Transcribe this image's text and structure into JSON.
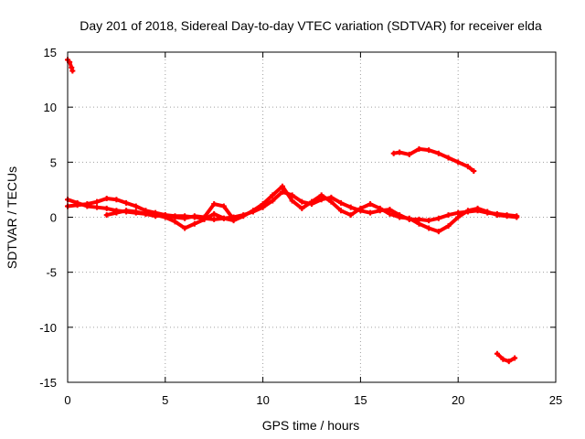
{
  "chart_data": {
    "type": "scatter",
    "title": "Day 201 of 2018, Sidereal Day-to-day VTEC variation (SDTVAR) for receiver elda",
    "xlabel": "GPS time / hours",
    "ylabel": "SDTVAR / TECUs",
    "xlim": [
      0,
      25
    ],
    "ylim": [
      -15,
      15
    ],
    "xticks": [
      "0",
      "5",
      "10",
      "15",
      "20",
      "25"
    ],
    "yticks": [
      "15",
      "10",
      "5",
      "0",
      "-5",
      "-10",
      "-15"
    ],
    "grid": true,
    "marker_color": "#ff0000",
    "series": [
      {
        "name": "segment-early-high",
        "x": [
          0.0,
          0.1,
          0.2,
          0.25
        ],
        "y": [
          14.3,
          14.1,
          13.6,
          13.3
        ]
      },
      {
        "name": "arc-main-a",
        "x": [
          0.0,
          0.5,
          1.0,
          1.5,
          2.0,
          2.5,
          3.0,
          3.5,
          4.0,
          4.5,
          5.0,
          5.5,
          6.0,
          6.5,
          7.0,
          7.5,
          8.0,
          8.5,
          9.0,
          9.5,
          10.0,
          10.5,
          11.0,
          11.5,
          12.0,
          12.5,
          13.0,
          13.5,
          14.0,
          14.5,
          15.0,
          15.5,
          16.0,
          16.5,
          17.0,
          17.5,
          18.0,
          18.5,
          19.0,
          19.5,
          20.0,
          20.5,
          21.0,
          21.5,
          22.0,
          22.5,
          23.0
        ],
        "y": [
          1.0,
          1.1,
          1.2,
          1.4,
          1.7,
          1.6,
          1.3,
          1.0,
          0.6,
          0.4,
          0.2,
          0.1,
          0.1,
          0.0,
          -0.1,
          -0.2,
          -0.1,
          0.0,
          0.2,
          0.5,
          0.9,
          1.5,
          2.3,
          2.0,
          1.4,
          1.2,
          1.6,
          1.8,
          1.3,
          0.9,
          0.6,
          0.4,
          0.6,
          0.7,
          0.2,
          -0.2,
          -0.2,
          -0.3,
          -0.1,
          0.2,
          0.4,
          0.5,
          0.6,
          0.4,
          0.3,
          0.2,
          0.1
        ]
      },
      {
        "name": "arc-main-b",
        "x": [
          0.0,
          0.5,
          1.0,
          1.5,
          2.0,
          2.5,
          3.0,
          3.5,
          4.0,
          4.5,
          5.0,
          5.5,
          6.0,
          6.5,
          7.0,
          7.5,
          8.0,
          8.5,
          9.0,
          9.5,
          10.0,
          10.5,
          11.0,
          11.5,
          12.0,
          12.5,
          13.0,
          13.5,
          14.0,
          14.5,
          15.0,
          15.5,
          16.0,
          16.5,
          17.0,
          17.5,
          18.0,
          18.5,
          19.0,
          19.5,
          20.0,
          20.5,
          21.0,
          21.5,
          22.0,
          22.5,
          23.0
        ],
        "y": [
          1.6,
          1.3,
          1.0,
          0.9,
          0.8,
          0.6,
          0.5,
          0.4,
          0.3,
          0.2,
          0.0,
          -0.4,
          -1.0,
          -0.6,
          -0.2,
          0.3,
          -0.1,
          -0.3,
          0.1,
          0.6,
          1.2,
          2.0,
          2.8,
          1.5,
          0.8,
          1.4,
          2.0,
          1.4,
          0.6,
          0.2,
          0.8,
          1.2,
          0.8,
          0.3,
          0.0,
          -0.1,
          -0.6,
          -1.0,
          -1.3,
          -0.8,
          0.0,
          0.6,
          0.8,
          0.5,
          0.2,
          0.1,
          0.0
        ]
      },
      {
        "name": "arc-main-c",
        "x": [
          2.0,
          2.5,
          3.0,
          3.5,
          4.0,
          4.5,
          5.0,
          5.5,
          6.0,
          6.5,
          7.0,
          7.5,
          8.0,
          8.5
        ],
        "y": [
          0.2,
          0.4,
          0.6,
          0.5,
          0.3,
          0.1,
          0.2,
          0.0,
          -0.1,
          0.1,
          0.0,
          1.2,
          1.0,
          -0.2
        ]
      },
      {
        "name": "segment-late-high",
        "x": [
          16.7,
          17.0,
          17.5,
          18.0,
          18.5,
          19.0,
          19.5,
          20.0,
          20.5,
          20.8
        ],
        "y": [
          5.8,
          5.9,
          5.7,
          6.2,
          6.1,
          5.8,
          5.4,
          5.0,
          4.6,
          4.2
        ]
      },
      {
        "name": "segment-late-low",
        "x": [
          22.0,
          22.3,
          22.6,
          22.9
        ],
        "y": [
          -12.4,
          -12.9,
          -13.1,
          -12.8
        ]
      }
    ]
  }
}
